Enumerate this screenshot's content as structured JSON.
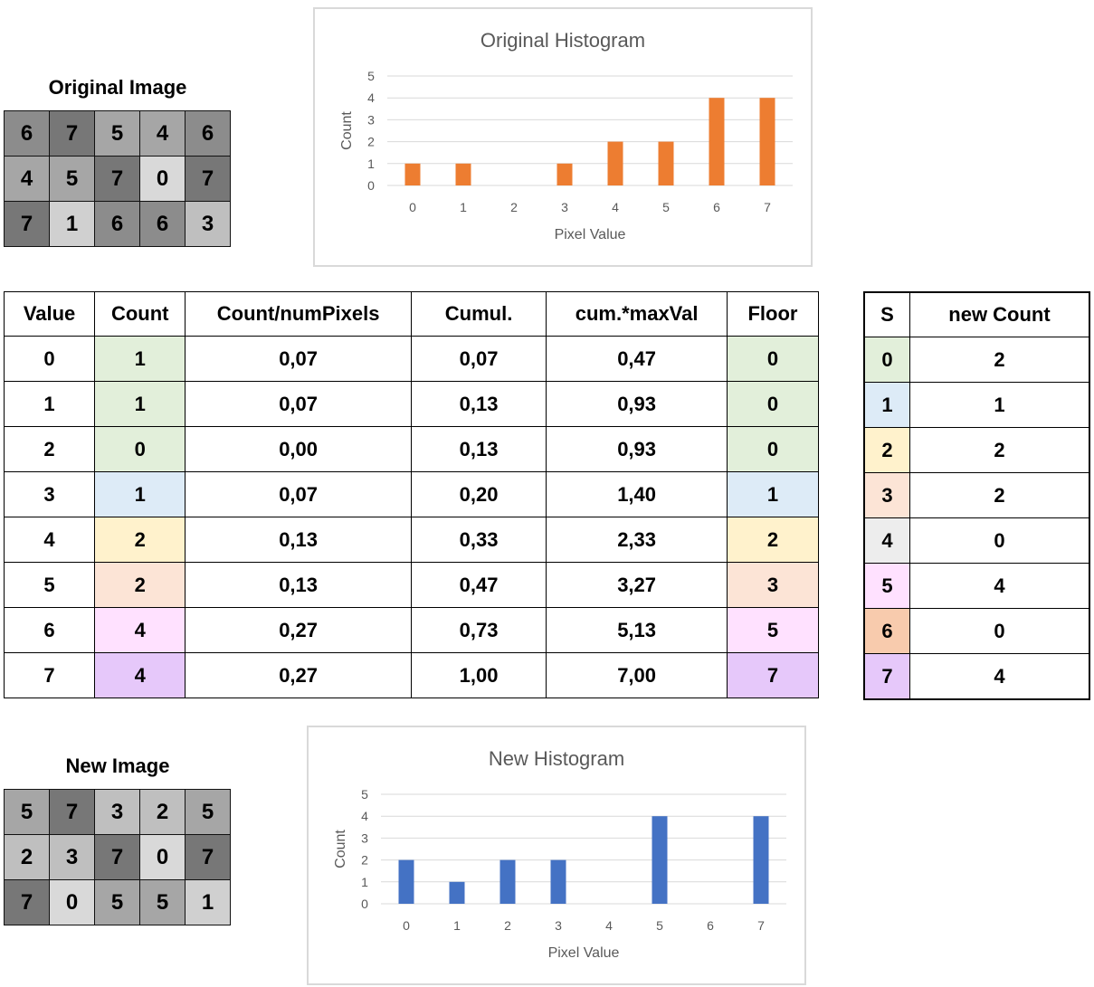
{
  "original_image": {
    "title": "Original Image",
    "rows": [
      [
        "6",
        "7",
        "5",
        "4",
        "6"
      ],
      [
        "4",
        "5",
        "7",
        "0",
        "7"
      ],
      [
        "7",
        "1",
        "6",
        "6",
        "3"
      ]
    ]
  },
  "new_image": {
    "title": "New Image",
    "rows": [
      [
        "5",
        "7",
        "3",
        "2",
        "5"
      ],
      [
        "2",
        "3",
        "7",
        "0",
        "7"
      ],
      [
        "7",
        "0",
        "5",
        "5",
        "1"
      ]
    ]
  },
  "cell_colors": {
    "0": "#d9d9d9",
    "1": "#d0d0d0",
    "2": "#bfbfbf",
    "3": "#bfbfbf",
    "4": "#a6a6a6",
    "5": "#a6a6a6",
    "6": "#8c8c8c",
    "7": "#777777"
  },
  "chart_data": [
    {
      "type": "bar",
      "title": "Original Histogram",
      "xlabel": "Pixel Value",
      "ylabel": "Count",
      "categories": [
        "0",
        "1",
        "2",
        "3",
        "4",
        "5",
        "6",
        "7"
      ],
      "values": [
        1,
        1,
        0,
        1,
        2,
        2,
        4,
        4
      ],
      "ylim": [
        0,
        5
      ],
      "y_ticks": [
        "0",
        "1",
        "2",
        "3",
        "4",
        "5"
      ],
      "bar_color": "#ed7d31",
      "grid": true
    },
    {
      "type": "bar",
      "title": "New Histogram",
      "xlabel": "Pixel Value",
      "ylabel": "Count",
      "categories": [
        "0",
        "1",
        "2",
        "3",
        "4",
        "5",
        "6",
        "7"
      ],
      "values": [
        2,
        1,
        2,
        2,
        0,
        4,
        0,
        4
      ],
      "ylim": [
        0,
        5
      ],
      "y_ticks": [
        "0",
        "1",
        "2",
        "3",
        "4",
        "5"
      ],
      "bar_color": "#4472c4",
      "grid": true
    }
  ],
  "equalization_table": {
    "headers": [
      "Value",
      "Count",
      "Count/numPixels",
      "Cumul.",
      "cum.*maxVal",
      "Floor"
    ],
    "rows": [
      [
        "0",
        "1",
        "0,07",
        "0,07",
        "0,47",
        "0"
      ],
      [
        "1",
        "1",
        "0,07",
        "0,13",
        "0,93",
        "0"
      ],
      [
        "2",
        "0",
        "0,00",
        "0,13",
        "0,93",
        "0"
      ],
      [
        "3",
        "1",
        "0,07",
        "0,20",
        "1,40",
        "1"
      ],
      [
        "4",
        "2",
        "0,13",
        "0,33",
        "2,33",
        "2"
      ],
      [
        "5",
        "2",
        "0,13",
        "0,47",
        "3,27",
        "3"
      ],
      [
        "6",
        "4",
        "0,27",
        "0,73",
        "5,13",
        "5"
      ],
      [
        "7",
        "4",
        "0,27",
        "1,00",
        "7,00",
        "7"
      ]
    ],
    "row_colors": [
      "#e2efda",
      "#e2efda",
      "#e2efda",
      "#ddebf7",
      "#fff2cc",
      "#fce4d6",
      "#ffe1ff",
      "#e6c8fa"
    ]
  },
  "new_count_table": {
    "headers": [
      "S",
      "new Count"
    ],
    "rows": [
      [
        "0",
        "2"
      ],
      [
        "1",
        "1"
      ],
      [
        "2",
        "2"
      ],
      [
        "3",
        "2"
      ],
      [
        "4",
        "0"
      ],
      [
        "5",
        "4"
      ],
      [
        "6",
        "0"
      ],
      [
        "7",
        "4"
      ]
    ],
    "s_colors": [
      "#e2efda",
      "#ddebf7",
      "#fff2cc",
      "#fce4d6",
      "#ededed",
      "#ffe1ff",
      "#f8cbad",
      "#e6c8fa"
    ]
  }
}
